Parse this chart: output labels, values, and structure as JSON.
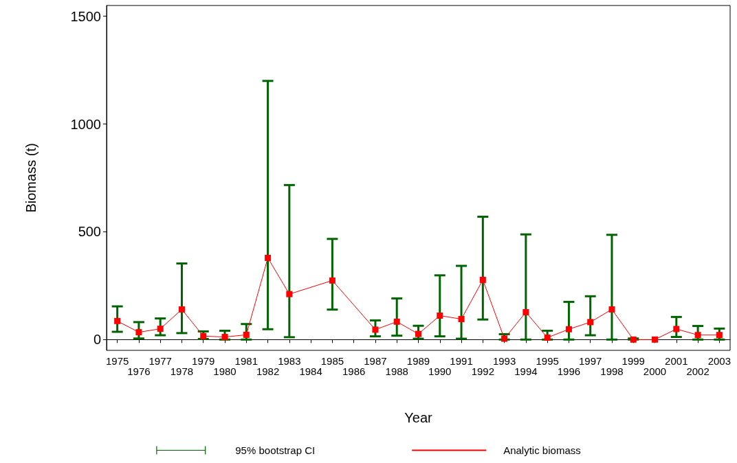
{
  "chart_data": {
    "type": "line",
    "xlabel": "Year",
    "ylabel": "Biomass (t)",
    "categories": [
      "1975",
      "1976",
      "1977",
      "1978",
      "1979",
      "1980",
      "1981",
      "1982",
      "1983",
      "1984",
      "1985",
      "1986",
      "1987",
      "1988",
      "1989",
      "1990",
      "1991",
      "1992",
      "1993",
      "1994",
      "1995",
      "1996",
      "1997",
      "1998",
      "1999",
      "2000",
      "2001",
      "2002",
      "2003"
    ],
    "series": [
      {
        "name": "Analytic biomass",
        "color": "#ff0000",
        "values": [
          86,
          34,
          50,
          140,
          16,
          12,
          22,
          379,
          211,
          null,
          274,
          null,
          46,
          83,
          26,
          111,
          95,
          277,
          4,
          127,
          9,
          48,
          81,
          140,
          0,
          0,
          49,
          21,
          21
        ],
        "errors": [
          [
            36,
            154
          ],
          [
            5,
            81
          ],
          [
            20,
            98
          ],
          [
            30,
            353
          ],
          [
            3,
            38
          ],
          [
            0,
            41
          ],
          [
            0,
            72
          ],
          [
            48,
            1200
          ],
          [
            11,
            717
          ],
          null,
          [
            139,
            467
          ],
          null,
          [
            15,
            89
          ],
          [
            18,
            191
          ],
          [
            4,
            64
          ],
          [
            15,
            298
          ],
          [
            4,
            342
          ],
          [
            93,
            570
          ],
          [
            0,
            25
          ],
          [
            0,
            488
          ],
          [
            0,
            41
          ],
          [
            0,
            175
          ],
          [
            20,
            201
          ],
          [
            0,
            486
          ],
          [
            0,
            5
          ],
          null,
          [
            12,
            105
          ],
          [
            0,
            63
          ],
          [
            0,
            51
          ]
        ]
      }
    ],
    "annotations": [
      "95% bootstrap CI"
    ],
    "ylim": [
      -50,
      1550
    ],
    "yticks": [
      0,
      500,
      1000,
      1500
    ],
    "grid": false,
    "legend": "bottom",
    "marker": "square",
    "line_style": "solid"
  }
}
